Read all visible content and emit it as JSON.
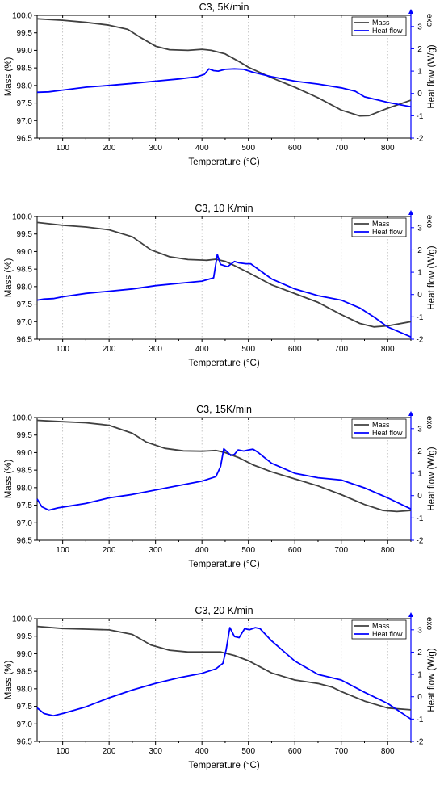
{
  "chart_data": [
    {
      "type": "line",
      "title": "C3, 5K/min",
      "xlabel": "Temperature (°C)",
      "ylabel": "Mass (%)",
      "y2label": "Heat flow (W/g)",
      "exo_label": "exo",
      "xlim": [
        45,
        850
      ],
      "ylim": [
        96.5,
        100.0
      ],
      "y2lim": [
        -2,
        3.5
      ],
      "x_ticks": [
        100,
        200,
        300,
        400,
        500,
        600,
        700,
        800
      ],
      "y_ticks": [
        96.5,
        97.0,
        97.5,
        98.0,
        98.5,
        99.0,
        99.5,
        100.0
      ],
      "y2_ticks": [
        -2,
        -1,
        0,
        1,
        2,
        3
      ],
      "grid": "vertical dotted",
      "legend": "top-right",
      "series": [
        {
          "name": "Mass",
          "axis": "left",
          "color": "#404040",
          "points": [
            [
              45,
              99.9
            ],
            [
              100,
              99.86
            ],
            [
              150,
              99.8
            ],
            [
              200,
              99.72
            ],
            [
              240,
              99.6
            ],
            [
              270,
              99.35
            ],
            [
              300,
              99.12
            ],
            [
              330,
              99.02
            ],
            [
              370,
              99.0
            ],
            [
              400,
              99.03
            ],
            [
              420,
              99.0
            ],
            [
              450,
              98.9
            ],
            [
              480,
              98.68
            ],
            [
              500,
              98.52
            ],
            [
              550,
              98.22
            ],
            [
              600,
              97.95
            ],
            [
              650,
              97.65
            ],
            [
              700,
              97.3
            ],
            [
              740,
              97.13
            ],
            [
              760,
              97.14
            ],
            [
              800,
              97.35
            ],
            [
              850,
              97.58
            ]
          ]
        },
        {
          "name": "Heat flow",
          "axis": "right",
          "color": "#0000ff",
          "points": [
            [
              45,
              0.05
            ],
            [
              70,
              0.07
            ],
            [
              100,
              0.15
            ],
            [
              150,
              0.28
            ],
            [
              200,
              0.36
            ],
            [
              250,
              0.45
            ],
            [
              300,
              0.55
            ],
            [
              350,
              0.65
            ],
            [
              390,
              0.75
            ],
            [
              405,
              0.85
            ],
            [
              415,
              1.1
            ],
            [
              425,
              1.02
            ],
            [
              435,
              1.0
            ],
            [
              450,
              1.08
            ],
            [
              470,
              1.1
            ],
            [
              490,
              1.08
            ],
            [
              510,
              0.95
            ],
            [
              550,
              0.75
            ],
            [
              600,
              0.55
            ],
            [
              650,
              0.42
            ],
            [
              700,
              0.25
            ],
            [
              730,
              0.1
            ],
            [
              750,
              -0.15
            ],
            [
              800,
              -0.4
            ],
            [
              850,
              -0.6
            ]
          ]
        }
      ]
    },
    {
      "type": "line",
      "title": "C3, 10 K/min",
      "xlabel": "Temperature (°C)",
      "ylabel": "Mass (%)",
      "y2label": "Heat flow (W/g)",
      "exo_label": "exo",
      "xlim": [
        45,
        850
      ],
      "ylim": [
        96.5,
        100.0
      ],
      "y2lim": [
        -2,
        3.5
      ],
      "x_ticks": [
        100,
        200,
        300,
        400,
        500,
        600,
        700,
        800
      ],
      "y_ticks": [
        96.5,
        97.0,
        97.5,
        98.0,
        98.5,
        99.0,
        99.5,
        100.0
      ],
      "y2_ticks": [
        -2,
        -1,
        0,
        1,
        2,
        3
      ],
      "grid": "vertical dotted",
      "legend": "top-right",
      "series": [
        {
          "name": "Mass",
          "axis": "left",
          "color": "#404040",
          "points": [
            [
              45,
              99.83
            ],
            [
              100,
              99.75
            ],
            [
              150,
              99.7
            ],
            [
              200,
              99.62
            ],
            [
              250,
              99.42
            ],
            [
              290,
              99.05
            ],
            [
              330,
              98.85
            ],
            [
              370,
              98.77
            ],
            [
              410,
              98.75
            ],
            [
              430,
              98.78
            ],
            [
              450,
              98.72
            ],
            [
              470,
              98.6
            ],
            [
              500,
              98.4
            ],
            [
              550,
              98.05
            ],
            [
              600,
              97.8
            ],
            [
              650,
              97.55
            ],
            [
              700,
              97.2
            ],
            [
              740,
              96.95
            ],
            [
              770,
              96.85
            ],
            [
              800,
              96.88
            ],
            [
              850,
              97.0
            ]
          ]
        },
        {
          "name": "Heat flow",
          "axis": "right",
          "color": "#0000ff",
          "points": [
            [
              45,
              -0.25
            ],
            [
              60,
              -0.2
            ],
            [
              80,
              -0.18
            ],
            [
              100,
              -0.1
            ],
            [
              150,
              0.05
            ],
            [
              200,
              0.15
            ],
            [
              250,
              0.25
            ],
            [
              300,
              0.4
            ],
            [
              350,
              0.5
            ],
            [
              400,
              0.6
            ],
            [
              425,
              0.75
            ],
            [
              433,
              1.8
            ],
            [
              440,
              1.35
            ],
            [
              455,
              1.25
            ],
            [
              470,
              1.48
            ],
            [
              480,
              1.42
            ],
            [
              495,
              1.38
            ],
            [
              505,
              1.38
            ],
            [
              520,
              1.15
            ],
            [
              550,
              0.7
            ],
            [
              600,
              0.25
            ],
            [
              650,
              -0.05
            ],
            [
              700,
              -0.25
            ],
            [
              740,
              -0.6
            ],
            [
              770,
              -1.0
            ],
            [
              800,
              -1.45
            ],
            [
              850,
              -1.9
            ]
          ]
        }
      ]
    },
    {
      "type": "line",
      "title": "C3, 15K/min",
      "xlabel": "Temperature (°C)",
      "ylabel": "Mass (%)",
      "y2label": "Heat flow (W/g)",
      "exo_label": "exo",
      "xlim": [
        45,
        850
      ],
      "ylim": [
        96.5,
        100.0
      ],
      "y2lim": [
        -2,
        3.5
      ],
      "x_ticks": [
        100,
        200,
        300,
        400,
        500,
        600,
        700,
        800
      ],
      "y_ticks": [
        96.5,
        97.0,
        97.5,
        98.0,
        98.5,
        99.0,
        99.5,
        100.0
      ],
      "y2_ticks": [
        -2,
        -1,
        0,
        1,
        2,
        3
      ],
      "grid": "vertical dotted",
      "legend": "top-right",
      "series": [
        {
          "name": "Mass",
          "axis": "left",
          "color": "#404040",
          "points": [
            [
              45,
              99.92
            ],
            [
              100,
              99.88
            ],
            [
              150,
              99.85
            ],
            [
              200,
              99.78
            ],
            [
              250,
              99.55
            ],
            [
              280,
              99.3
            ],
            [
              320,
              99.12
            ],
            [
              360,
              99.05
            ],
            [
              400,
              99.04
            ],
            [
              430,
              99.06
            ],
            [
              450,
              99.0
            ],
            [
              480,
              98.85
            ],
            [
              510,
              98.65
            ],
            [
              550,
              98.45
            ],
            [
              600,
              98.25
            ],
            [
              650,
              98.05
            ],
            [
              700,
              97.8
            ],
            [
              750,
              97.52
            ],
            [
              790,
              97.35
            ],
            [
              820,
              97.32
            ],
            [
              850,
              97.35
            ]
          ]
        },
        {
          "name": "Heat flow",
          "axis": "right",
          "color": "#0000ff",
          "points": [
            [
              45,
              -0.15
            ],
            [
              55,
              -0.5
            ],
            [
              70,
              -0.65
            ],
            [
              90,
              -0.55
            ],
            [
              120,
              -0.45
            ],
            [
              150,
              -0.35
            ],
            [
              200,
              -0.1
            ],
            [
              250,
              0.05
            ],
            [
              300,
              0.25
            ],
            [
              350,
              0.45
            ],
            [
              400,
              0.65
            ],
            [
              430,
              0.85
            ],
            [
              440,
              1.3
            ],
            [
              447,
              2.1
            ],
            [
              455,
              1.95
            ],
            [
              462,
              1.8
            ],
            [
              470,
              1.85
            ],
            [
              478,
              2.05
            ],
            [
              490,
              2.0
            ],
            [
              500,
              2.05
            ],
            [
              510,
              2.08
            ],
            [
              520,
              1.95
            ],
            [
              550,
              1.45
            ],
            [
              600,
              1.0
            ],
            [
              650,
              0.8
            ],
            [
              700,
              0.7
            ],
            [
              750,
              0.35
            ],
            [
              800,
              -0.1
            ],
            [
              850,
              -0.6
            ]
          ]
        }
      ]
    },
    {
      "type": "line",
      "title": "C3, 20 K/min",
      "xlabel": "Temperature (°C)",
      "ylabel": "Mass (%)",
      "y2label": "Heat flow (W/g)",
      "exo_label": "exo",
      "xlim": [
        45,
        850
      ],
      "ylim": [
        96.5,
        100.0
      ],
      "y2lim": [
        -2,
        3.5
      ],
      "x_ticks": [
        100,
        200,
        300,
        400,
        500,
        600,
        700,
        800
      ],
      "y_ticks": [
        96.5,
        97.0,
        97.5,
        98.0,
        98.5,
        99.0,
        99.5,
        100.0
      ],
      "y2_ticks": [
        -2,
        -1,
        0,
        1,
        2,
        3
      ],
      "grid": "vertical dotted",
      "legend": "top-right",
      "series": [
        {
          "name": "Mass",
          "axis": "left",
          "color": "#404040",
          "points": [
            [
              45,
              99.78
            ],
            [
              100,
              99.72
            ],
            [
              150,
              99.7
            ],
            [
              200,
              99.68
            ],
            [
              250,
              99.55
            ],
            [
              290,
              99.25
            ],
            [
              330,
              99.1
            ],
            [
              370,
              99.05
            ],
            [
              410,
              99.05
            ],
            [
              440,
              99.05
            ],
            [
              470,
              98.95
            ],
            [
              500,
              98.8
            ],
            [
              550,
              98.45
            ],
            [
              600,
              98.25
            ],
            [
              650,
              98.15
            ],
            [
              680,
              98.05
            ],
            [
              700,
              97.92
            ],
            [
              750,
              97.65
            ],
            [
              800,
              97.45
            ],
            [
              850,
              97.4
            ]
          ]
        },
        {
          "name": "Heat flow",
          "axis": "right",
          "color": "#0000ff",
          "points": [
            [
              45,
              -0.5
            ],
            [
              60,
              -0.75
            ],
            [
              80,
              -0.85
            ],
            [
              100,
              -0.75
            ],
            [
              150,
              -0.45
            ],
            [
              200,
              -0.05
            ],
            [
              250,
              0.3
            ],
            [
              300,
              0.6
            ],
            [
              350,
              0.85
            ],
            [
              400,
              1.05
            ],
            [
              430,
              1.25
            ],
            [
              445,
              1.5
            ],
            [
              452,
              2.1
            ],
            [
              460,
              3.1
            ],
            [
              470,
              2.7
            ],
            [
              480,
              2.65
            ],
            [
              492,
              3.05
            ],
            [
              502,
              3.0
            ],
            [
              515,
              3.1
            ],
            [
              525,
              3.05
            ],
            [
              550,
              2.5
            ],
            [
              600,
              1.6
            ],
            [
              650,
              1.0
            ],
            [
              700,
              0.75
            ],
            [
              750,
              0.2
            ],
            [
              800,
              -0.3
            ],
            [
              850,
              -1.0
            ]
          ]
        }
      ]
    }
  ]
}
